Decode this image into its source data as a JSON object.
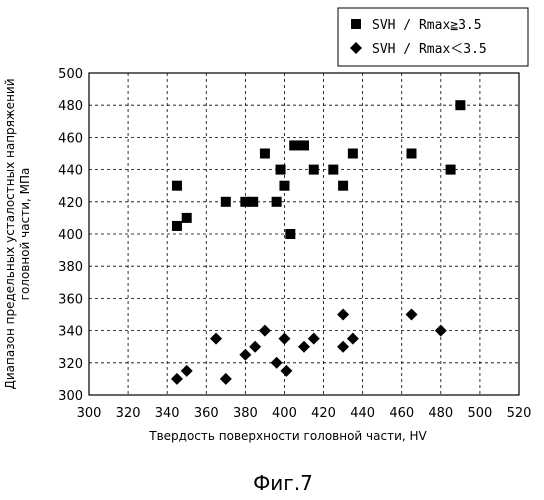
{
  "chart_data": {
    "type": "scatter",
    "title": "",
    "xlabel": "Твердость поверхности головной части, HV",
    "ylabel_line1": "Диапазон предельных усталостных напряжений",
    "ylabel_line2": "головной части, МПа",
    "xlim": [
      300,
      520
    ],
    "ylim": [
      300,
      500
    ],
    "x_ticks": [
      "300",
      "320",
      "340",
      "360",
      "380",
      "400",
      "420",
      "440",
      "460",
      "480",
      "500",
      "520"
    ],
    "y_ticks": [
      "300",
      "320",
      "340",
      "360",
      "380",
      "400",
      "420",
      "440",
      "460",
      "480",
      "500"
    ],
    "grid": true,
    "grid_style": "dashed",
    "legend_position": "top-right",
    "series": [
      {
        "name": "SVH / Rmax≧3.5",
        "marker": "square",
        "color": "#000000",
        "points": [
          [
            345,
            430
          ],
          [
            345,
            405
          ],
          [
            350,
            410
          ],
          [
            370,
            420
          ],
          [
            380,
            420
          ],
          [
            384,
            420
          ],
          [
            390,
            450
          ],
          [
            396,
            420
          ],
          [
            398,
            440
          ],
          [
            400,
            430
          ],
          [
            403,
            400
          ],
          [
            405,
            455
          ],
          [
            410,
            455
          ],
          [
            415,
            440
          ],
          [
            425,
            440
          ],
          [
            430,
            430
          ],
          [
            435,
            450
          ],
          [
            465,
            450
          ],
          [
            485,
            440
          ],
          [
            490,
            480
          ]
        ]
      },
      {
        "name": "SVH / Rmax＜3.5",
        "marker": "diamond",
        "color": "#000000",
        "points": [
          [
            345,
            310
          ],
          [
            350,
            315
          ],
          [
            365,
            335
          ],
          [
            370,
            310
          ],
          [
            380,
            325
          ],
          [
            385,
            330
          ],
          [
            390,
            340
          ],
          [
            396,
            320
          ],
          [
            400,
            335
          ],
          [
            401,
            315
          ],
          [
            410,
            330
          ],
          [
            415,
            335
          ],
          [
            430,
            350
          ],
          [
            430,
            330
          ],
          [
            435,
            335
          ],
          [
            465,
            350
          ],
          [
            480,
            340
          ]
        ]
      }
    ]
  },
  "figure_caption": "Фиг.7"
}
